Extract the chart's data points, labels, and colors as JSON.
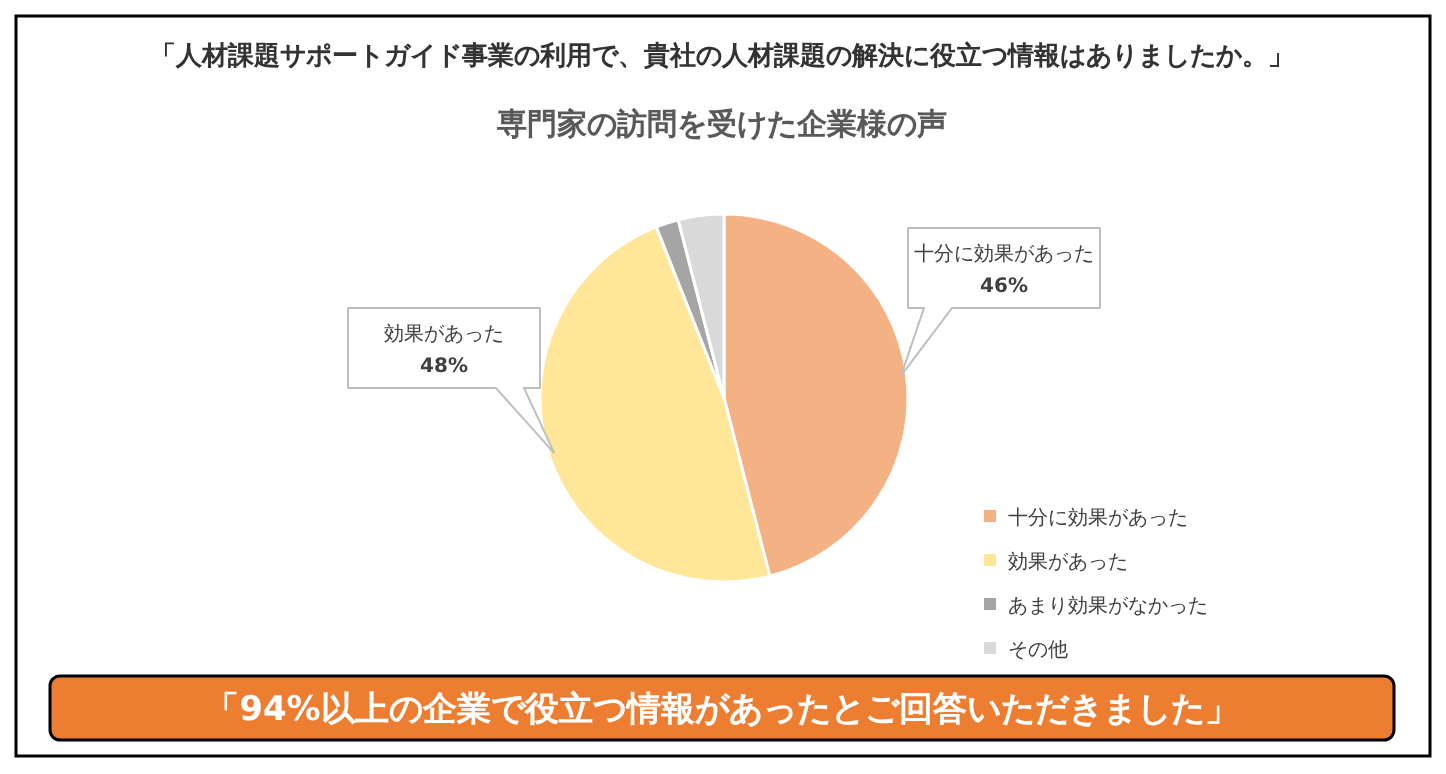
{
  "chart_data": {
    "type": "pie",
    "title": "「人材課題サポートガイド事業の利用で、貴社の人材課題の解決に役立つ情報はありましたか。」",
    "subtitle": "専門家の訪問を受けた企業様の声",
    "categories": [
      "十分に効果があった",
      "効果があった",
      "あまり効果がなかった",
      "その他"
    ],
    "values": [
      46,
      48,
      2,
      4
    ],
    "colors": [
      "#f4b183",
      "#ffe699",
      "#a5a5a5",
      "#d9d9d9"
    ],
    "value_labels": [
      "46%",
      "48%",
      null,
      null
    ],
    "legend": "right",
    "annotations": [
      "「94%以上の企業で役立つ情報があったとご回答いただきました」"
    ]
  }
}
